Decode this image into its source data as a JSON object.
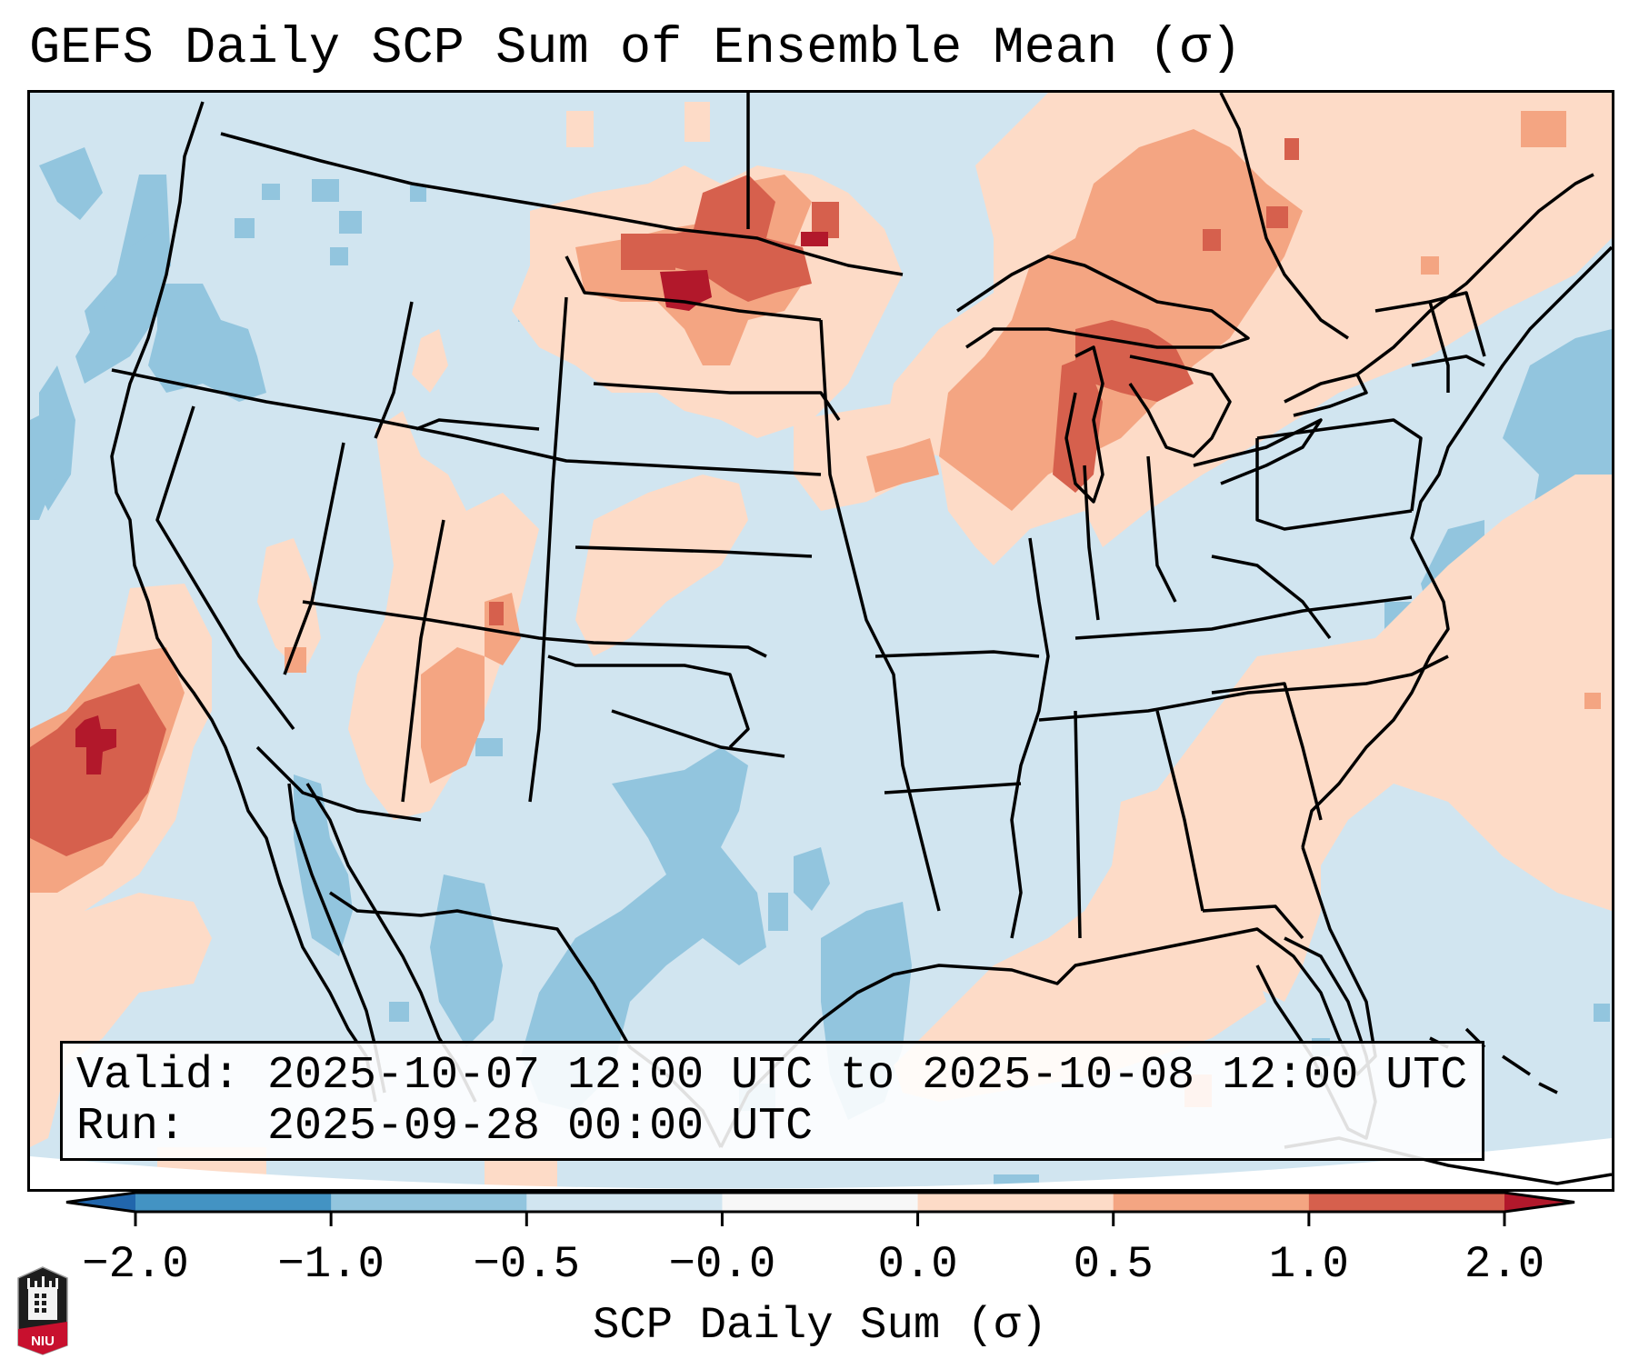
{
  "title": "GEFS Daily SCP Sum of Ensemble Mean (σ)",
  "info_box": {
    "valid_label": "Valid:",
    "valid_value": "2025-10-07 12:00 UTC to 2025-10-08 12:00 UTC",
    "run_label": "Run:",
    "run_value": "2025-09-28 00:00 UTC"
  },
  "colorbar": {
    "label": "SCP Daily Sum (σ)",
    "ticks": [
      "−2.0",
      "−1.0",
      "−0.5",
      "−0.0",
      "0.0",
      "0.5",
      "1.0",
      "2.0"
    ],
    "under_color": "#2166ac",
    "over_color": "#b2182b",
    "bins": [
      {
        "from": "-2.0",
        "to": "-1.0",
        "color": "#4393c3"
      },
      {
        "from": "-1.0",
        "to": "-0.5",
        "color": "#92c5de"
      },
      {
        "from": "-0.5",
        "to": "-0.0",
        "color": "#d1e5f0"
      },
      {
        "from": "-0.0",
        "to": "0.0",
        "color": "#f7f7f7"
      },
      {
        "from": "0.0",
        "to": "0.5",
        "color": "#fddbc7"
      },
      {
        "from": "0.5",
        "to": "1.0",
        "color": "#f4a582"
      },
      {
        "from": "1.0",
        "to": "2.0",
        "color": "#d6604d"
      }
    ],
    "extend": "both"
  },
  "map": {
    "background_color": "#d1e5f0",
    "region": "Contiguous United States",
    "anomaly_areas": [
      {
        "name": "offshore-california-maximum",
        "level": "1.0 to 2.0+",
        "peak": "above 2.0"
      },
      {
        "name": "northern-plains-maximum",
        "level": "0.5 to 2.0+",
        "peak": "above 2.0"
      },
      {
        "name": "great-lakes-maximum",
        "level": "0.5 to 2.0",
        "peak": "1.0 to 2.0"
      },
      {
        "name": "four-corners-positive",
        "level": "0.0 to 1.0",
        "peak": "1.0 to 2.0"
      },
      {
        "name": "atlantic-positive",
        "level": "0.0 to 0.5",
        "peak": "0.5 to 1.0"
      },
      {
        "name": "texas-mexico-negative",
        "level": "-1.0 to -0.5",
        "peak": "-1.0 to -0.5"
      },
      {
        "name": "pacific-northwest-negative",
        "level": "-1.0 to -0.5",
        "peak": "-1.0 to -0.5"
      },
      {
        "name": "northwest-atlantic-negative",
        "level": "-1.0 to -0.5",
        "peak": "-1.0 to -0.5"
      }
    ]
  },
  "logo": {
    "text": "NIU",
    "primary_color": "#c8102e",
    "secondary_color": "#1d1d1d"
  }
}
